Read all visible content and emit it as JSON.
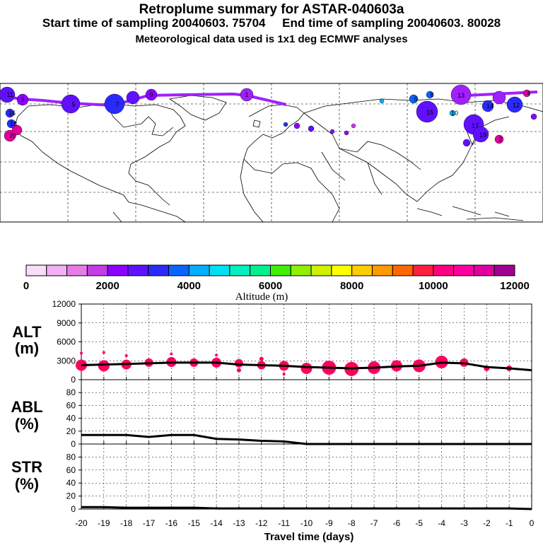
{
  "header": {
    "title": "Retroplume summary for ASTAR-040603a",
    "start_label": "Start time of sampling 20040603. 75704",
    "end_label": "End time of sampling 20040603. 80028",
    "met_line": "Meteorological data used is 1x1 deg ECMWF analyses"
  },
  "map": {
    "plume_labels": [
      "1",
      "3",
      "5",
      "7",
      "9",
      "11",
      "13",
      "15",
      "17",
      "19",
      "20",
      "12",
      "14",
      "16",
      "18",
      "2",
      "4",
      "6",
      "8",
      "10"
    ]
  },
  "colorbar": {
    "title": "Altitude (m)",
    "ticks": [
      "0",
      "2000",
      "4000",
      "6000",
      "8000",
      "10000",
      "12000"
    ],
    "colors": [
      "#f9ddf9",
      "#f3b0f3",
      "#e67ce6",
      "#c43ce6",
      "#8c00ff",
      "#6010ff",
      "#2a2aff",
      "#0a64ff",
      "#00b0ff",
      "#00e0f0",
      "#00f0c0",
      "#00f090",
      "#40f000",
      "#90f000",
      "#d0f000",
      "#ffff00",
      "#ffcc00",
      "#ff9900",
      "#ff6600",
      "#ff2040",
      "#ff0080",
      "#ff00a0",
      "#e000a0",
      "#a00090"
    ]
  },
  "panels": {
    "alt": {
      "label1": "ALT",
      "label2": "(m)"
    },
    "abl": {
      "label1": "ABL",
      "label2": "(%)"
    },
    "str": {
      "label1": "STR",
      "label2": "(%)"
    }
  },
  "chart_data": [
    {
      "type": "line",
      "title": "ALT",
      "ylabel": "ALT (m)",
      "xlabel": "Travel time (days)",
      "ylim": [
        0,
        12000
      ],
      "yticks": [
        "0",
        "3000",
        "6000",
        "9000",
        "12000"
      ],
      "x": [
        -20,
        -19,
        -18,
        -17,
        -16,
        -15,
        -14,
        -13,
        -12,
        -11,
        -10,
        -9,
        -8,
        -7,
        -6,
        -5,
        -4,
        -3,
        -2,
        -1,
        0
      ],
      "x_tick_labels": [
        "-20",
        "-19",
        "-18",
        "-17",
        "-16",
        "-15",
        "-14",
        "-13",
        "-12",
        "-11",
        "-10",
        "-9",
        "-8",
        "-7",
        "-6",
        "-5",
        "-4",
        "-3",
        "-2",
        "-1",
        "0"
      ],
      "values": [
        2300,
        2400,
        2500,
        2600,
        2700,
        2700,
        2700,
        2400,
        2300,
        2200,
        2000,
        1900,
        1800,
        1900,
        2100,
        2200,
        2700,
        2600,
        2000,
        1800,
        1500
      ],
      "markers": [
        {
          "x": -20,
          "y": 2300,
          "r": 8
        },
        {
          "x": -20,
          "y": 4200,
          "r": 2
        },
        {
          "x": -19,
          "y": 2200,
          "r": 8
        },
        {
          "x": -19,
          "y": 4300,
          "r": 2
        },
        {
          "x": -18,
          "y": 2400,
          "r": 7
        },
        {
          "x": -18,
          "y": 3800,
          "r": 2
        },
        {
          "x": -17,
          "y": 2700,
          "r": 6
        },
        {
          "x": -16,
          "y": 2800,
          "r": 7
        },
        {
          "x": -16,
          "y": 4100,
          "r": 2
        },
        {
          "x": -15,
          "y": 2700,
          "r": 6
        },
        {
          "x": -14,
          "y": 2700,
          "r": 7
        },
        {
          "x": -14,
          "y": 3900,
          "r": 2
        },
        {
          "x": -13,
          "y": 2600,
          "r": 6
        },
        {
          "x": -13,
          "y": 1500,
          "r": 3
        },
        {
          "x": -12,
          "y": 2300,
          "r": 6
        },
        {
          "x": -12,
          "y": 3300,
          "r": 3
        },
        {
          "x": -11,
          "y": 2200,
          "r": 7
        },
        {
          "x": -11,
          "y": 900,
          "r": 2
        },
        {
          "x": -10,
          "y": 1800,
          "r": 8
        },
        {
          "x": -9,
          "y": 1900,
          "r": 10
        },
        {
          "x": -8,
          "y": 1700,
          "r": 10
        },
        {
          "x": -7,
          "y": 1900,
          "r": 9
        },
        {
          "x": -6,
          "y": 2200,
          "r": 8
        },
        {
          "x": -5,
          "y": 2200,
          "r": 9
        },
        {
          "x": -4,
          "y": 2800,
          "r": 9
        },
        {
          "x": -3,
          "y": 2700,
          "r": 6
        },
        {
          "x": -2,
          "y": 1800,
          "r": 4
        },
        {
          "x": -1,
          "y": 1800,
          "r": 4
        }
      ]
    },
    {
      "type": "line",
      "title": "ABL",
      "ylabel": "ABL (%)",
      "ylim": [
        0,
        100
      ],
      "yticks": [
        "0",
        "20",
        "40",
        "60",
        "80"
      ],
      "x": [
        -20,
        -19,
        -18,
        -17,
        -16,
        -15,
        -14,
        -13,
        -12,
        -11,
        -10,
        -9,
        -8,
        -7,
        -6,
        -5,
        -4,
        -3,
        -2,
        -1,
        0
      ],
      "values": [
        14,
        14,
        14,
        11,
        14,
        14,
        8,
        7,
        5,
        4,
        0,
        0,
        0,
        0,
        0,
        0,
        0,
        0,
        0,
        0,
        0
      ]
    },
    {
      "type": "line",
      "title": "STR",
      "ylabel": "STR (%)",
      "ylim": [
        0,
        100
      ],
      "yticks": [
        "0",
        "20",
        "40",
        "60",
        "80"
      ],
      "x": [
        -20,
        -19,
        -18,
        -17,
        -16,
        -15,
        -14,
        -13,
        -12,
        -11,
        -10,
        -9,
        -8,
        -7,
        -6,
        -5,
        -4,
        -3,
        -2,
        -1,
        0
      ],
      "values": [
        3,
        3,
        2,
        2,
        2,
        2,
        1,
        1,
        1,
        1,
        1,
        1,
        1,
        1,
        1,
        1,
        1,
        1,
        1,
        1,
        0
      ]
    }
  ]
}
